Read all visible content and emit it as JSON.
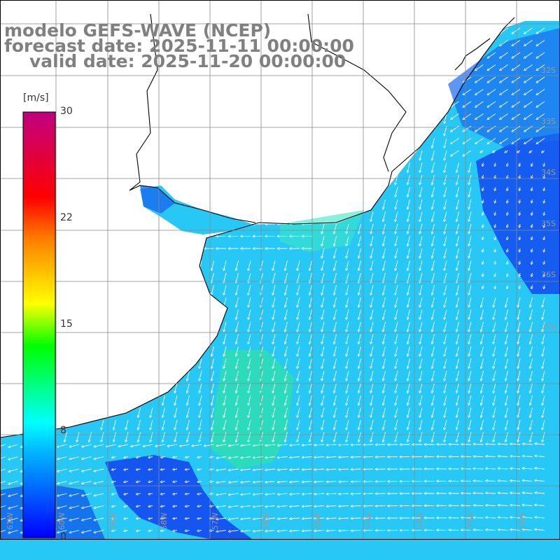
{
  "title": {
    "line1": "modelo GEFS-WAVE (NCEP)",
    "line2": "forecast date: 2025-11-11 00:00:00",
    "line3": "valid date: 2025-11-20 00:00:00"
  },
  "colorbar": {
    "unit": "[m/s]",
    "ticks": [
      "30",
      "22",
      "15",
      "8",
      "0"
    ],
    "stops": [
      "#0000ff",
      "#00b4ff",
      "#00ffff",
      "#00ff00",
      "#ffff00",
      "#ff8000",
      "#ff0000",
      "#c00080"
    ]
  },
  "lat_labels": [
    "32S",
    "33S",
    "34S",
    "35S",
    "36S",
    "37S"
  ],
  "lon_labels": [
    "61W",
    "60W",
    "59W",
    "58W",
    "57W",
    "56W",
    "55W",
    "54W",
    "53W",
    "52W",
    "51W"
  ],
  "colors": {
    "ocean_base": "#27c8f5",
    "calm": "#1450f0",
    "strong": "#2fe0a8",
    "land": "#ffffff",
    "grid": "#888888",
    "text": "#808080"
  }
}
